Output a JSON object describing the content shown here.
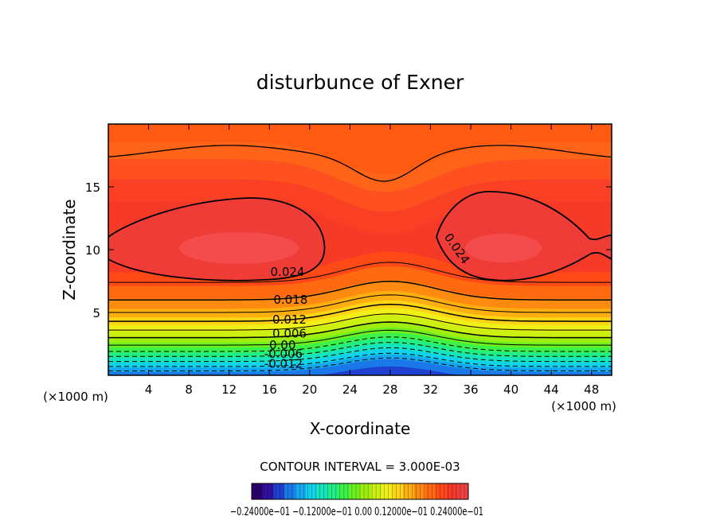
{
  "chart_data": {
    "type": "heatmap",
    "title": "disturbunce of Exner",
    "xlabel": "X-coordinate",
    "ylabel": "Z-coordinate",
    "x_unit": "(×1000 m)",
    "y_unit": "(×1000 m)",
    "xlim": [
      0,
      50
    ],
    "ylim": [
      0,
      20
    ],
    "x_ticks": [
      4,
      8,
      12,
      16,
      20,
      24,
      28,
      32,
      36,
      40,
      44,
      48
    ],
    "y_ticks": [
      5,
      10,
      15
    ],
    "contour_interval_text": "CONTOUR INTERVAL = 3.000E-03",
    "contour_labels": [
      {
        "text": "0.024",
        "x": 17.8,
        "z": 7.9
      },
      {
        "text": "0.024",
        "x": 34.3,
        "z": 9.9,
        "rotate": 55
      },
      {
        "text": "0.018",
        "x": 18.1,
        "z": 5.7
      },
      {
        "text": "0.012",
        "x": 18.0,
        "z": 4.1
      },
      {
        "text": "0.006",
        "x": 18.0,
        "z": 3.0
      },
      {
        "text": "0.00",
        "x": 17.3,
        "z": 2.1
      },
      {
        "text": "-0.006",
        "x": 17.4,
        "z": 1.4
      },
      {
        "text": "-0.012",
        "x": 17.4,
        "z": 0.6
      }
    ],
    "colorbar": {
      "min": -0.024,
      "max": 0.03,
      "tick_labels_text": "−0.24000e−01 −0.12000e−01 0.00 0.12000e−01 0.24000e−01",
      "colors": [
        "#2a006e",
        "#3010a0",
        "#1f3fd0",
        "#1a78e8",
        "#15a8f0",
        "#10d2ea",
        "#14e4c0",
        "#22ee88",
        "#3af24a",
        "#6cf020",
        "#a0ee10",
        "#ccf010",
        "#f0f016",
        "#ffd414",
        "#ffae10",
        "#ff8a10",
        "#ff6a10",
        "#ff4a18",
        "#f53a28",
        "#ef4040"
      ]
    }
  }
}
